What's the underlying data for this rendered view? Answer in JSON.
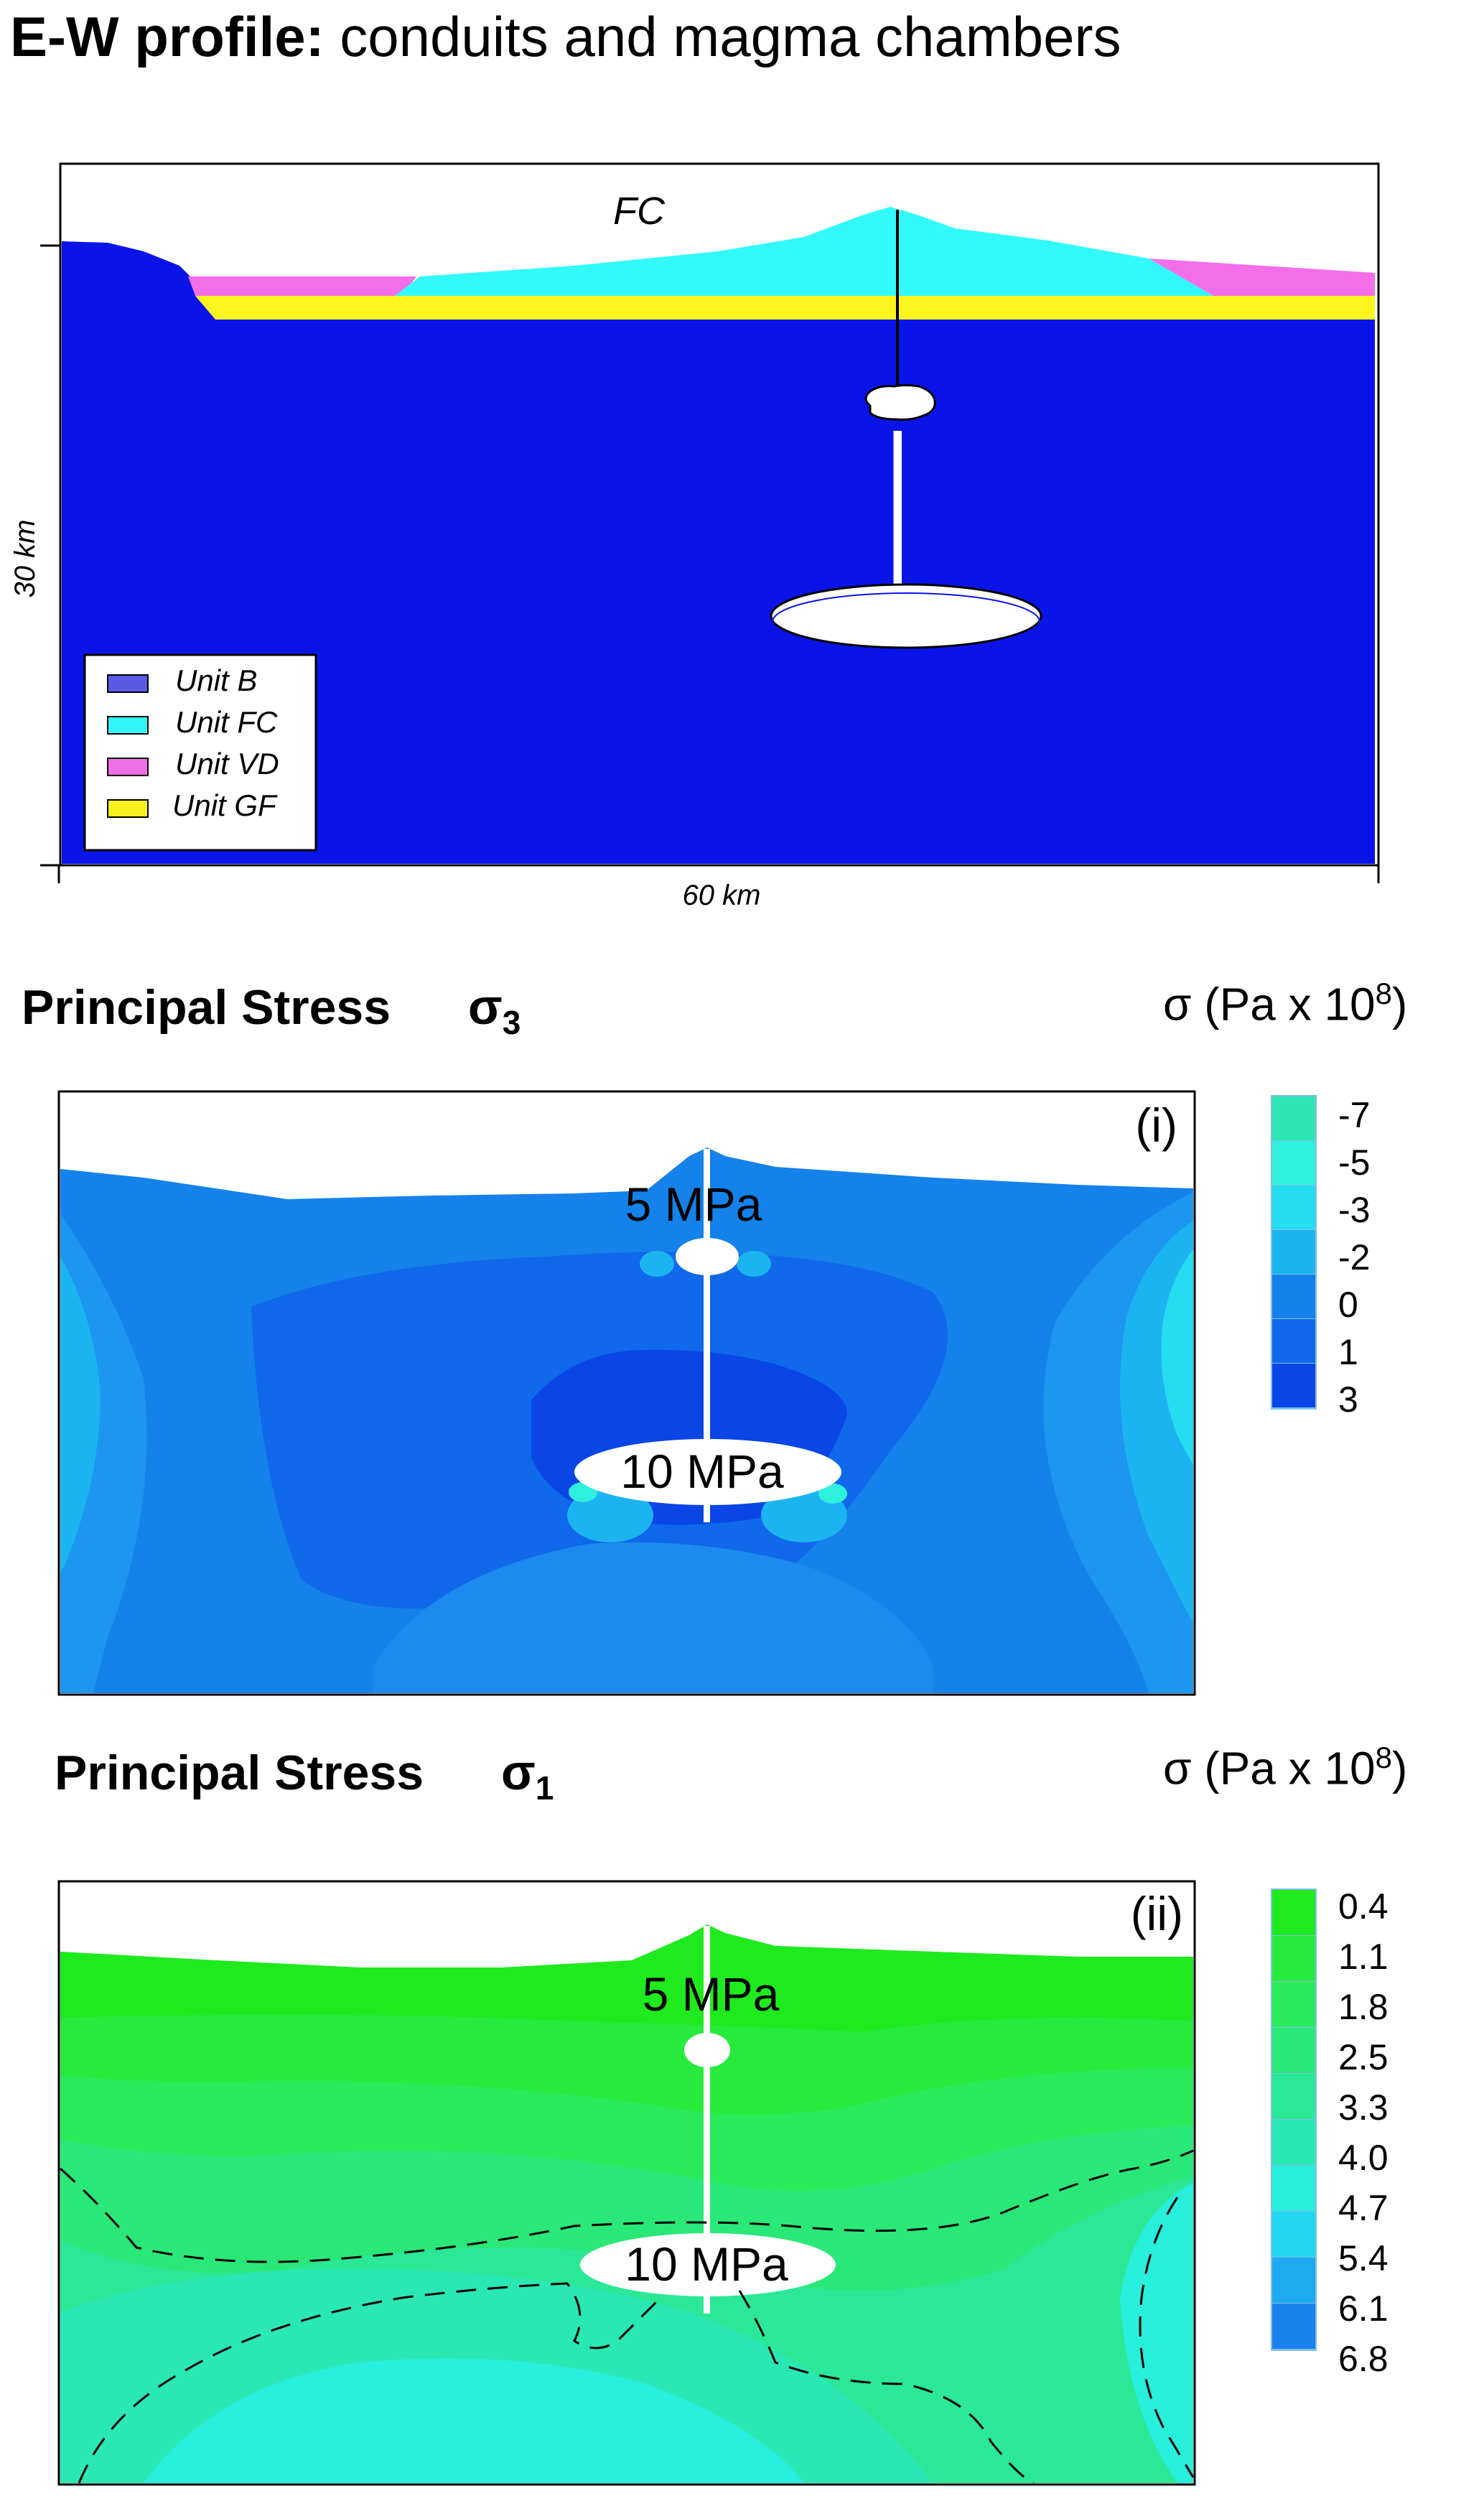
{
  "title": {
    "bold": "E-W profile:",
    "rest": " conduits and magma chambers"
  },
  "profile": {
    "top_label": "FC",
    "y_axis_label": "30 km",
    "x_axis_label": "60 km",
    "legend": [
      {
        "label": "Unit B",
        "color": "#5a5ae6"
      },
      {
        "label": "Unit FC",
        "color": "#33f5f5"
      },
      {
        "label": "Unit VD",
        "color": "#f06ee6"
      },
      {
        "label": "Unit GF",
        "color": "#f5f01e"
      }
    ],
    "colors": {
      "unit_b_fill": "#0a14e8",
      "fc_fill": "#33fafa",
      "vd_fill": "#f56ee9",
      "gf_fill": "#faf51e"
    }
  },
  "panel_sigma3": {
    "heading": "Principal Stress",
    "sigma": "σ",
    "subscript": "3",
    "units_prefix": "σ (Pa x 10",
    "units_exp": "8",
    "units_suffix": ")",
    "panel_label": "(i)",
    "small_chamber_label": "5 MPa",
    "large_chamber_label": "10 MPa",
    "colorbar": [
      {
        "label": "-7",
        "color": "#2ee6b4"
      },
      {
        "label": "-5",
        "color": "#2ef0dc"
      },
      {
        "label": "-3",
        "color": "#25dcf0"
      },
      {
        "label": "-2",
        "color": "#1cb4f0"
      },
      {
        "label": "0",
        "color": "#1482ea"
      },
      {
        "label": "1",
        "color": "#0f69ea"
      },
      {
        "label": "3",
        "color": "#0a46e6"
      }
    ]
  },
  "panel_sigma1": {
    "heading": "Principal Stress",
    "sigma": "σ",
    "subscript": "1",
    "units_prefix": "σ (Pa x 10",
    "units_exp": "8",
    "units_suffix": ")",
    "panel_label": "(ii)",
    "small_chamber_label": "5 MPa",
    "large_chamber_label": "10 MPa",
    "colorbar": [
      {
        "label": "0.4",
        "color": "#1eea1e"
      },
      {
        "label": "1.1",
        "color": "#28ea3c"
      },
      {
        "label": "1.8",
        "color": "#2aea5a"
      },
      {
        "label": "2.5",
        "color": "#2ae878"
      },
      {
        "label": "3.3",
        "color": "#2ae896"
      },
      {
        "label": "4.0",
        "color": "#2ae8b4"
      },
      {
        "label": "4.7",
        "color": "#28eedc"
      },
      {
        "label": "5.4",
        "color": "#22d6f0"
      },
      {
        "label": "6.1",
        "color": "#1eaaf0"
      },
      {
        "label": "6.8",
        "color": "#1a82ee"
      }
    ]
  }
}
